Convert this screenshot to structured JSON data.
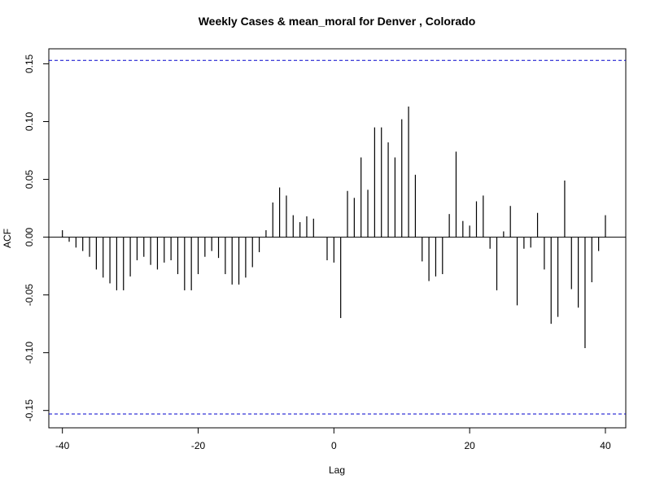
{
  "chart_data": {
    "type": "bar",
    "title": "Weekly Cases & mean_moral for Denver , Colorado",
    "xlabel": "Lag",
    "ylabel": "ACF",
    "xlim": [
      -42,
      43
    ],
    "ylim": [
      -0.165,
      0.163
    ],
    "x_ticks": [
      -40,
      -20,
      0,
      20,
      40
    ],
    "y_ticks": [
      -0.15,
      -0.1,
      -0.05,
      0.0,
      0.05,
      0.1,
      0.15
    ],
    "y_tick_labels": [
      "-0.15",
      "-0.10",
      "-0.05",
      "0.00",
      "0.05",
      "0.10",
      "0.15"
    ],
    "confidence_bounds": [
      0.153,
      -0.153
    ],
    "lags": [
      -40,
      -39,
      -38,
      -37,
      -36,
      -35,
      -34,
      -33,
      -32,
      -31,
      -30,
      -29,
      -28,
      -27,
      -26,
      -25,
      -24,
      -23,
      -22,
      -21,
      -20,
      -19,
      -18,
      -17,
      -16,
      -15,
      -14,
      -13,
      -12,
      -11,
      -10,
      -9,
      -8,
      -7,
      -6,
      -5,
      -4,
      -3,
      -2,
      -1,
      0,
      1,
      2,
      3,
      4,
      5,
      6,
      7,
      8,
      9,
      10,
      11,
      12,
      13,
      14,
      15,
      16,
      17,
      18,
      19,
      20,
      21,
      22,
      23,
      24,
      25,
      26,
      27,
      28,
      29,
      30,
      31,
      32,
      33,
      34,
      35,
      36,
      37,
      38,
      39,
      40
    ],
    "values": [
      0.006,
      -0.004,
      -0.009,
      -0.012,
      -0.017,
      -0.028,
      -0.035,
      -0.04,
      -0.046,
      -0.046,
      -0.034,
      -0.02,
      -0.017,
      -0.024,
      -0.028,
      -0.022,
      -0.02,
      -0.032,
      -0.046,
      -0.046,
      -0.032,
      -0.017,
      -0.012,
      -0.018,
      -0.032,
      -0.041,
      -0.041,
      -0.035,
      -0.026,
      -0.013,
      0.006,
      0.03,
      0.043,
      0.036,
      0.019,
      0.013,
      0.018,
      0.016,
      0.0,
      -0.02,
      -0.022,
      -0.07,
      0.04,
      0.034,
      0.069,
      0.041,
      0.095,
      0.095,
      0.082,
      0.069,
      0.102,
      0.113,
      0.054,
      -0.021,
      -0.038,
      -0.034,
      -0.032,
      0.02,
      0.074,
      0.014,
      0.01,
      0.031,
      0.036,
      -0.01,
      -0.046,
      0.005,
      0.027,
      -0.059,
      -0.01,
      -0.009,
      0.021,
      -0.028,
      -0.075,
      -0.069,
      0.049,
      -0.045,
      -0.061,
      -0.096,
      -0.039,
      -0.012,
      0.019
    ],
    "grid": false,
    "legend": "none",
    "colors": {
      "bars": "#000000",
      "bounds": "#0000cc",
      "frame": "#000000"
    }
  }
}
